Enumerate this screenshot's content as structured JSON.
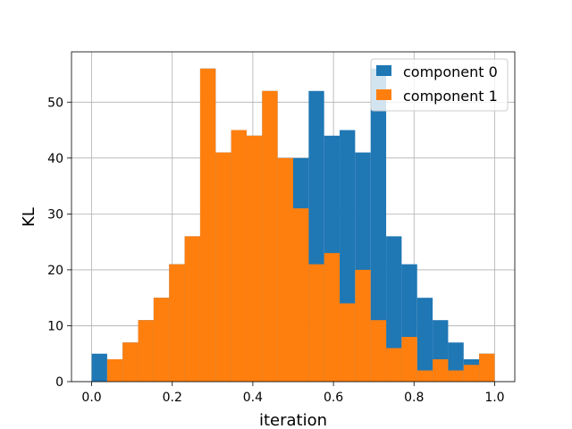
{
  "chart_data": {
    "type": "bar",
    "xlabel": "iteration",
    "ylabel": "KL",
    "xlim": [
      -0.05,
      1.05
    ],
    "ylim": [
      0,
      59
    ],
    "xticks": [
      0.0,
      0.2,
      0.4,
      0.6,
      0.8,
      1.0
    ],
    "xtick_labels": [
      "0.0",
      "0.2",
      "0.4",
      "0.6",
      "0.8",
      "1.0"
    ],
    "yticks": [
      0,
      10,
      20,
      30,
      40,
      50
    ],
    "ytick_labels": [
      "0",
      "10",
      "20",
      "30",
      "40",
      "50"
    ],
    "grid": true,
    "legend_position": "top-right",
    "series": [
      {
        "name": "component 0",
        "color": "#1f77b4",
        "bin_edges": [
          0.0,
          0.0385,
          0.0769,
          0.1154,
          0.1538,
          0.1923,
          0.2308,
          0.2692,
          0.3077,
          0.3462,
          0.3846,
          0.4231,
          0.4615,
          0.5,
          0.5385,
          0.5769,
          0.6154,
          0.6538,
          0.6923,
          0.7308,
          0.7692,
          0.8077,
          0.8462,
          0.8846,
          0.9231,
          0.9615,
          1.0
        ],
        "values": [
          5,
          4,
          7,
          11,
          15,
          21,
          26,
          56,
          41,
          45,
          44,
          52,
          40,
          40,
          52,
          44,
          45,
          41,
          56,
          26,
          21,
          15,
          11,
          7,
          4,
          5
        ]
      },
      {
        "name": "component 1",
        "color": "#ff7f0e",
        "bin_edges": [
          0.0,
          0.0385,
          0.0769,
          0.1154,
          0.1538,
          0.1923,
          0.2308,
          0.2692,
          0.3077,
          0.3462,
          0.3846,
          0.4231,
          0.4615,
          0.5,
          0.5385,
          0.5769,
          0.6154,
          0.6538,
          0.6923,
          0.7308,
          0.7692,
          0.8077,
          0.8462,
          0.8846,
          0.9231,
          0.9615,
          1.0
        ],
        "values": [
          0,
          4,
          7,
          11,
          15,
          21,
          26,
          56,
          41,
          45,
          44,
          52,
          40,
          31,
          21,
          23,
          14,
          20,
          11,
          6,
          8,
          2,
          4,
          2,
          3,
          5
        ]
      }
    ]
  }
}
